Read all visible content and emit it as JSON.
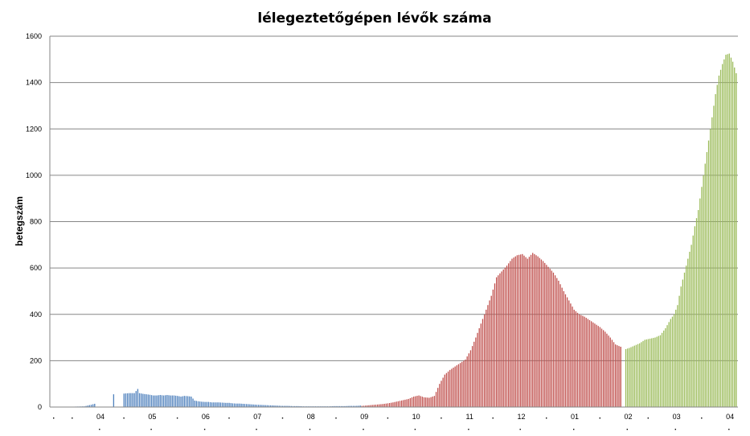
{
  "chart_data": {
    "type": "bar",
    "title": "lélegeztetőgépen lévők száma",
    "xlabel": "",
    "ylabel": "betegszám",
    "ylim": [
      0,
      1600
    ],
    "yticks": [
      0,
      200,
      400,
      600,
      800,
      1000,
      1200,
      1400,
      1600
    ],
    "grid": true,
    "legend": "none",
    "x_start": "2020-03-04",
    "x_end": "2021-04-07",
    "x_tick_labels": [
      {
        "date": "2020-04-01",
        "label": "04"
      },
      {
        "date": "2020-05-01",
        "label": "05"
      },
      {
        "date": "2020-06-01",
        "label": "06"
      },
      {
        "date": "2020-07-01",
        "label": "07"
      },
      {
        "date": "2020-08-01",
        "label": "08"
      },
      {
        "date": "2020-09-01",
        "label": "09"
      },
      {
        "date": "2020-10-01",
        "label": "10"
      },
      {
        "date": "2020-11-01",
        "label": "11"
      },
      {
        "date": "2020-12-01",
        "label": "12"
      },
      {
        "date": "2021-01-01",
        "label": "01"
      },
      {
        "date": "2021-02-01",
        "label": "02"
      },
      {
        "date": "2021-03-01",
        "label": "03"
      },
      {
        "date": "2021-04-01",
        "label": "04"
      }
    ],
    "series": [
      {
        "color": "#4f81bd",
        "points": [
          [
            "2020-03-19",
            2
          ],
          [
            "2020-03-24",
            3
          ],
          [
            "2020-03-28",
            10
          ],
          [
            "2020-03-30",
            14
          ],
          [
            "2020-04-10",
            55
          ],
          [
            "2020-04-16",
            58
          ],
          [
            "2020-04-19",
            60
          ],
          [
            "2020-04-22",
            60
          ],
          [
            "2020-04-24",
            78
          ],
          [
            "2020-04-25",
            60
          ],
          [
            "2020-04-27",
            57
          ],
          [
            "2020-04-29",
            55
          ],
          [
            "2020-05-01",
            53
          ],
          [
            "2020-05-03",
            50
          ],
          [
            "2020-05-05",
            50
          ],
          [
            "2020-05-07",
            52
          ],
          [
            "2020-05-09",
            50
          ],
          [
            "2020-05-11",
            52
          ],
          [
            "2020-05-13",
            50
          ],
          [
            "2020-05-15",
            50
          ],
          [
            "2020-05-17",
            48
          ],
          [
            "2020-05-19",
            45
          ],
          [
            "2020-05-21",
            48
          ],
          [
            "2020-05-23",
            47
          ],
          [
            "2020-05-25",
            45
          ],
          [
            "2020-05-27",
            28
          ],
          [
            "2020-05-29",
            25
          ],
          [
            "2020-05-31",
            23
          ],
          [
            "2020-06-02",
            22
          ],
          [
            "2020-06-04",
            22
          ],
          [
            "2020-06-06",
            20
          ],
          [
            "2020-06-08",
            20
          ],
          [
            "2020-06-10",
            20
          ],
          [
            "2020-06-12",
            19
          ],
          [
            "2020-06-14",
            18
          ],
          [
            "2020-06-16",
            18
          ],
          [
            "2020-06-18",
            16
          ],
          [
            "2020-06-20",
            15
          ],
          [
            "2020-06-22",
            15
          ],
          [
            "2020-06-24",
            14
          ],
          [
            "2020-06-26",
            13
          ],
          [
            "2020-06-28",
            12
          ],
          [
            "2020-06-30",
            11
          ],
          [
            "2020-07-02",
            10
          ],
          [
            "2020-07-05",
            9
          ],
          [
            "2020-07-08",
            8
          ],
          [
            "2020-07-11",
            7
          ],
          [
            "2020-07-14",
            6
          ],
          [
            "2020-07-17",
            5
          ],
          [
            "2020-07-20",
            5
          ],
          [
            "2020-07-23",
            4
          ],
          [
            "2020-07-26",
            4
          ],
          [
            "2020-07-29",
            3
          ],
          [
            "2020-08-01",
            3
          ],
          [
            "2020-08-04",
            3
          ],
          [
            "2020-08-07",
            3
          ],
          [
            "2020-08-10",
            3
          ],
          [
            "2020-08-13",
            3
          ],
          [
            "2020-08-16",
            4
          ],
          [
            "2020-08-19",
            4
          ],
          [
            "2020-08-22",
            4
          ],
          [
            "2020-08-25",
            5
          ],
          [
            "2020-08-28",
            5
          ],
          [
            "2020-08-31",
            6
          ]
        ]
      },
      {
        "color": "#c0504d",
        "points": [
          [
            "2020-09-01",
            5
          ],
          [
            "2020-09-04",
            7
          ],
          [
            "2020-09-07",
            9
          ],
          [
            "2020-09-10",
            11
          ],
          [
            "2020-09-13",
            13
          ],
          [
            "2020-09-16",
            16
          ],
          [
            "2020-09-19",
            20
          ],
          [
            "2020-09-22",
            25
          ],
          [
            "2020-09-25",
            30
          ],
          [
            "2020-09-28",
            35
          ],
          [
            "2020-10-01",
            45
          ],
          [
            "2020-10-04",
            50
          ],
          [
            "2020-10-07",
            42
          ],
          [
            "2020-10-10",
            40
          ],
          [
            "2020-10-13",
            48
          ],
          [
            "2020-10-16",
            100
          ],
          [
            "2020-10-19",
            140
          ],
          [
            "2020-10-22",
            160
          ],
          [
            "2020-10-25",
            175
          ],
          [
            "2020-10-28",
            190
          ],
          [
            "2020-10-31",
            205
          ],
          [
            "2020-11-03",
            245
          ],
          [
            "2020-11-06",
            300
          ],
          [
            "2020-11-09",
            360
          ],
          [
            "2020-11-12",
            420
          ],
          [
            "2020-11-15",
            480
          ],
          [
            "2020-11-18",
            560
          ],
          [
            "2020-11-21",
            585
          ],
          [
            "2020-11-24",
            610
          ],
          [
            "2020-11-27",
            640
          ],
          [
            "2020-11-30",
            655
          ],
          [
            "2020-12-03",
            660
          ],
          [
            "2020-12-06",
            640
          ],
          [
            "2020-12-09",
            665
          ],
          [
            "2020-12-12",
            650
          ],
          [
            "2020-12-15",
            630
          ],
          [
            "2020-12-18",
            605
          ],
          [
            "2020-12-21",
            580
          ],
          [
            "2020-12-24",
            545
          ],
          [
            "2020-12-27",
            500
          ],
          [
            "2020-12-30",
            460
          ],
          [
            "2021-01-02",
            420
          ],
          [
            "2021-01-05",
            400
          ],
          [
            "2021-01-08",
            390
          ],
          [
            "2021-01-11",
            375
          ],
          [
            "2021-01-14",
            360
          ],
          [
            "2021-01-17",
            345
          ],
          [
            "2021-01-20",
            325
          ],
          [
            "2021-01-23",
            300
          ],
          [
            "2021-01-26",
            270
          ],
          [
            "2021-01-29",
            260
          ]
        ]
      },
      {
        "color": "#9bbb59",
        "points": [
          [
            "2021-02-01",
            250
          ],
          [
            "2021-02-03",
            255
          ],
          [
            "2021-02-06",
            265
          ],
          [
            "2021-02-09",
            275
          ],
          [
            "2021-02-12",
            290
          ],
          [
            "2021-02-15",
            295
          ],
          [
            "2021-02-18",
            300
          ],
          [
            "2021-02-21",
            310
          ],
          [
            "2021-02-24",
            340
          ],
          [
            "2021-02-27",
            380
          ],
          [
            "2021-03-01",
            400
          ],
          [
            "2021-03-03",
            440
          ],
          [
            "2021-03-05",
            520
          ],
          [
            "2021-03-07",
            580
          ],
          [
            "2021-03-09",
            640
          ],
          [
            "2021-03-11",
            700
          ],
          [
            "2021-03-13",
            780
          ],
          [
            "2021-03-15",
            850
          ],
          [
            "2021-03-17",
            950
          ],
          [
            "2021-03-19",
            1050
          ],
          [
            "2021-03-21",
            1150
          ],
          [
            "2021-03-23",
            1250
          ],
          [
            "2021-03-25",
            1350
          ],
          [
            "2021-03-27",
            1430
          ],
          [
            "2021-03-29",
            1480
          ],
          [
            "2021-03-31",
            1520
          ],
          [
            "2021-04-02",
            1525
          ],
          [
            "2021-04-04",
            1490
          ],
          [
            "2021-04-06",
            1440
          ]
        ]
      }
    ]
  }
}
